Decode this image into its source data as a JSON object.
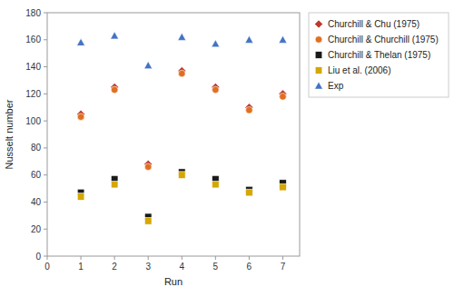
{
  "chart_data": {
    "type": "scatter",
    "x_label": "Run",
    "y_label": "Nusselt number",
    "x": [
      1,
      2,
      3,
      4,
      5,
      6,
      7
    ],
    "series": [
      {
        "name": "Churchill & Chu (1975)",
        "color": "#c0392b",
        "marker": "diamond",
        "values": [
          105,
          125,
          68,
          137,
          125,
          110,
          120
        ]
      },
      {
        "name": "Churchill & Churchill (1975)",
        "color": "#e07020",
        "marker": "circle",
        "values": [
          103,
          123,
          66,
          135,
          123,
          108,
          118
        ]
      },
      {
        "name": "Churchill & Thelan (1975)",
        "color": "#1a1a1a",
        "marker": "square",
        "values": [
          47,
          57,
          29,
          62,
          57,
          49,
          54
        ]
      },
      {
        "name": "Liu et al. (2006)",
        "color": "#d4a800",
        "marker": "square",
        "values": [
          44,
          53,
          26,
          60,
          53,
          47,
          51
        ]
      },
      {
        "name": "Exp",
        "color": "#4472c4",
        "marker": "triangle",
        "values": [
          158,
          163,
          141,
          162,
          157,
          160,
          160
        ]
      }
    ],
    "xlim": [
      0,
      7.5
    ],
    "ylim": [
      0,
      180
    ],
    "xticks": [
      0,
      1,
      2,
      3,
      4,
      5,
      6,
      7
    ],
    "yticks": [
      0,
      20,
      40,
      60,
      80,
      100,
      120,
      140,
      160,
      180
    ],
    "grid": false,
    "legend": "upper right"
  }
}
